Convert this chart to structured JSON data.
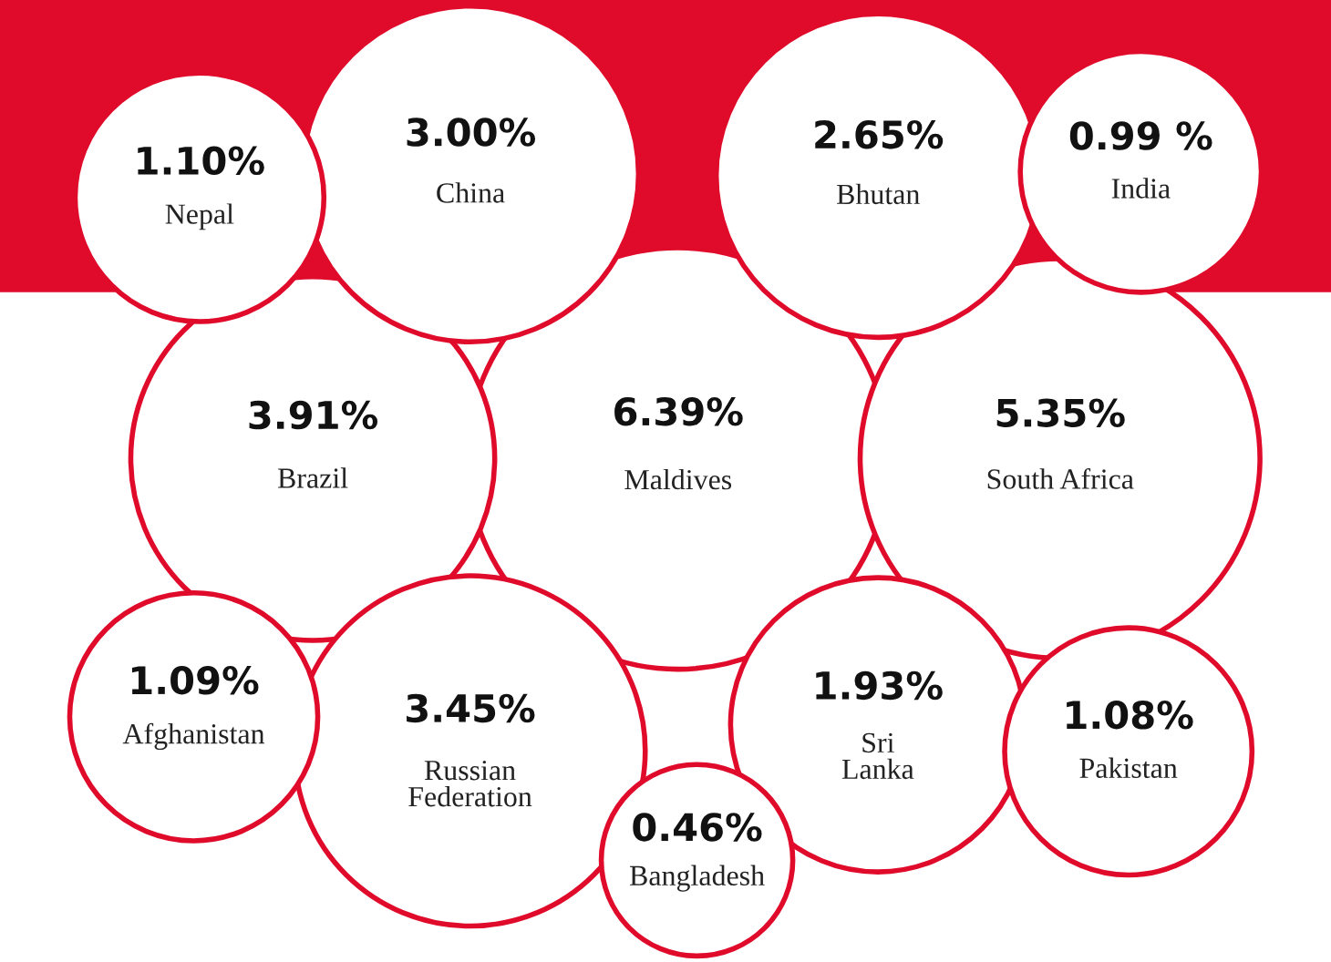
{
  "chart_data": {
    "type": "other",
    "categories": [
      "Pakistan",
      "Russian Federation",
      "Afghanistan",
      "Maldives",
      "Bhutan",
      "South Africa",
      "China",
      "Sri Lanka",
      "Bangladesh",
      "India",
      "Brazil",
      "Nepal"
    ],
    "values": [
      1.08,
      3.45,
      1.09,
      6.39,
      2.65,
      5.35,
      3.0,
      1.93,
      0.46,
      0.99,
      3.91,
      1.1
    ],
    "value_labels": [
      "1.08%",
      "3.45%",
      "1.09%",
      "6.39%",
      "2.65%",
      "5.35%",
      "3.00%",
      "1.93%",
      "0.46%",
      "0.99 %",
      "3.91%",
      "1.10%"
    ],
    "color": "#e00b2a"
  }
}
